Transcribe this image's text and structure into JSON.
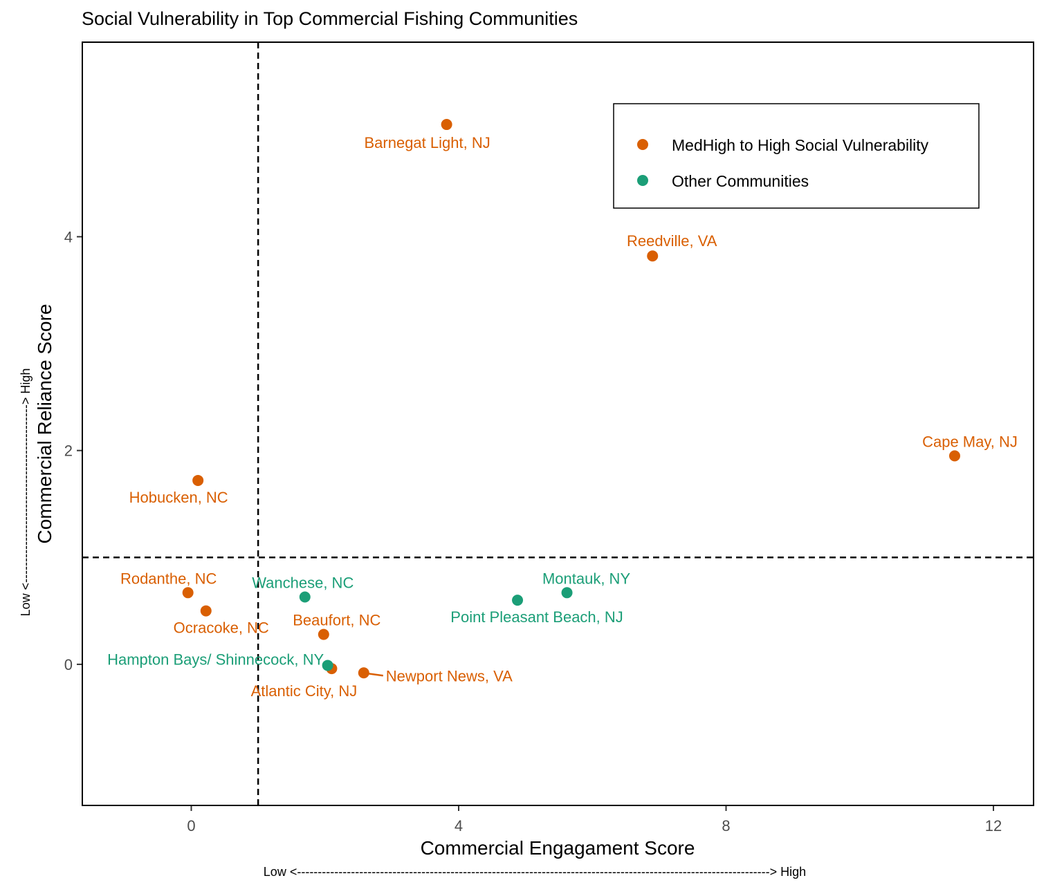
{
  "chart_data": {
    "type": "scatter",
    "title": "Social Vulnerability in Top Commercial Fishing Communities",
    "xlabel": "Commercial Engagament Score",
    "ylabel": "Commercial Reliance Score",
    "x_direction": "Low <------------------------------------------------------------------------------------------------------------------> High",
    "y_direction": "Low <-------------------------------------------> High",
    "xlim": [
      -1.63,
      12.6
    ],
    "ylim": [
      -1.32,
      5.82
    ],
    "x_ticks": [
      0,
      4,
      8,
      12
    ],
    "y_ticks": [
      0,
      2,
      4
    ],
    "reference_lines": {
      "x": 1,
      "y": 1
    },
    "grid": false,
    "legend_position": "top-right",
    "series": [
      {
        "name": "MedHigh to High Social Vulnerability",
        "color": "#d95f02",
        "points": [
          {
            "label": "Barnegat Light, NJ",
            "x": 3.82,
            "y": 5.05
          },
          {
            "label": "Reedville, VA",
            "x": 6.9,
            "y": 3.82
          },
          {
            "label": "Cape May, NJ",
            "x": 11.42,
            "y": 1.95
          },
          {
            "label": "Hobucken, NC",
            "x": 0.1,
            "y": 1.72
          },
          {
            "label": "Rodanthe, NC",
            "x": -0.05,
            "y": 0.67
          },
          {
            "label": "Ocracoke, NC",
            "x": 0.22,
            "y": 0.5
          },
          {
            "label": "Beaufort, NC",
            "x": 1.98,
            "y": 0.28
          },
          {
            "label": "Atlantic City, NJ",
            "x": 2.1,
            "y": -0.04
          },
          {
            "label": "Newport News, VA",
            "x": 2.58,
            "y": -0.08
          }
        ]
      },
      {
        "name": "Other Communities",
        "color": "#1b9e77",
        "points": [
          {
            "label": "Wanchese, NC",
            "x": 1.7,
            "y": 0.63
          },
          {
            "label": "Montauk, NY",
            "x": 5.62,
            "y": 0.67
          },
          {
            "label": "Point Pleasant Beach, NJ",
            "x": 4.88,
            "y": 0.6
          },
          {
            "label": "Hampton Bays/ Shinnecock, NY",
            "x": 2.04,
            "y": -0.01
          }
        ]
      }
    ]
  }
}
